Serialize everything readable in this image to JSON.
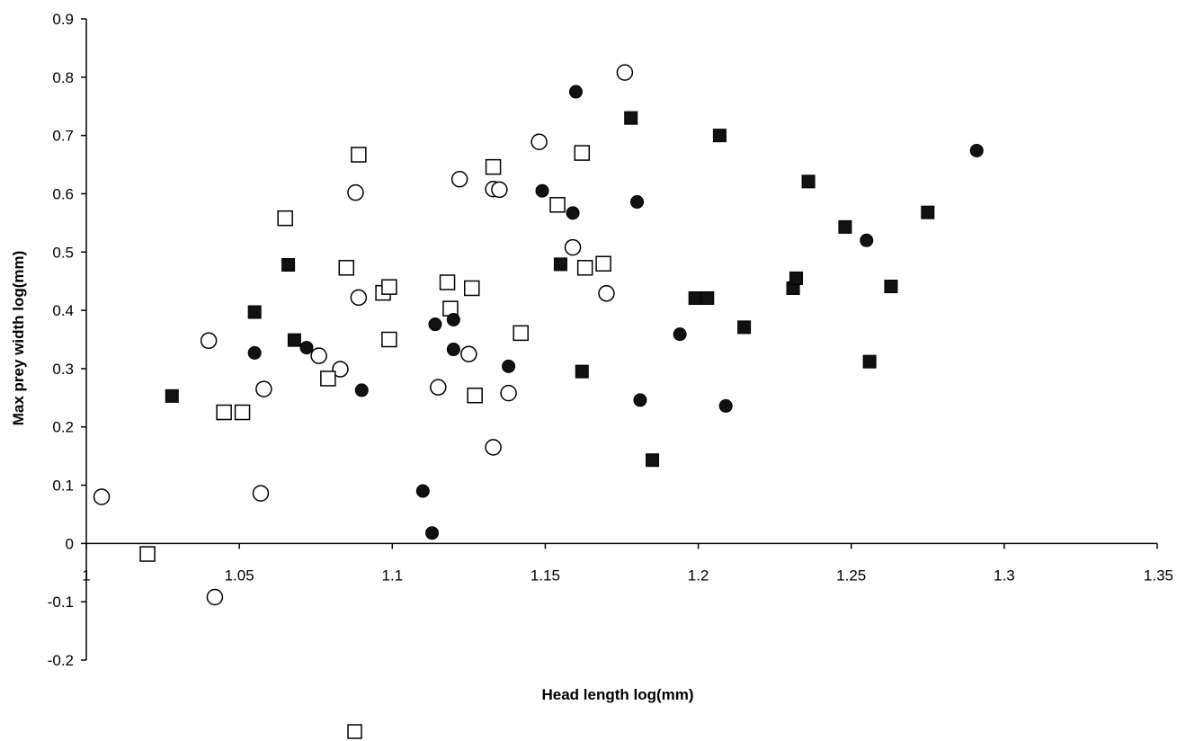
{
  "chart_data": {
    "type": "scatter",
    "title": "",
    "xlabel": "Head length log(mm)",
    "ylabel": "Max prey width log(mm)",
    "xlim": [
      1,
      1.35
    ],
    "ylim": [
      -0.2,
      0.9
    ],
    "x_ticks": [
      "1",
      "1.05",
      "1.1",
      "1.15",
      "1.2",
      "1.25",
      "1.3",
      "1.35"
    ],
    "y_ticks": [
      "-0.2",
      "-0.1",
      "0",
      "0.1",
      "0.2",
      "0.3",
      "0.4",
      "0.5",
      "0.6",
      "0.7",
      "0.8",
      "0.9"
    ],
    "grid": false,
    "legend": "none",
    "colors": {
      "axis": "#000000",
      "fill_dark": "#111111",
      "fill_open": "#ffffff"
    },
    "series": [
      {
        "marker": "open-circle",
        "points": [
          [
            1.005,
            0.08
          ],
          [
            1.04,
            0.348
          ],
          [
            1.042,
            -0.092
          ],
          [
            1.057,
            0.086
          ],
          [
            1.058,
            0.265
          ],
          [
            1.076,
            0.322
          ],
          [
            1.083,
            0.299
          ],
          [
            1.088,
            0.602
          ],
          [
            1.089,
            0.422
          ],
          [
            1.115,
            0.268
          ],
          [
            1.122,
            0.625
          ],
          [
            1.125,
            0.325
          ],
          [
            1.133,
            0.165
          ],
          [
            1.133,
            0.608
          ],
          [
            1.135,
            0.607
          ],
          [
            1.138,
            0.258
          ],
          [
            1.148,
            0.689
          ],
          [
            1.159,
            0.508
          ],
          [
            1.17,
            0.429
          ],
          [
            1.176,
            0.808
          ]
        ]
      },
      {
        "marker": "open-square",
        "points": [
          [
            1.02,
            -0.018
          ],
          [
            1.045,
            0.225
          ],
          [
            1.051,
            0.225
          ],
          [
            1.065,
            0.558
          ],
          [
            1.079,
            0.283
          ],
          [
            1.085,
            0.473
          ],
          [
            1.089,
            0.667
          ],
          [
            1.097,
            0.43
          ],
          [
            1.099,
            0.44
          ],
          [
            1.099,
            0.35
          ],
          [
            1.118,
            0.448
          ],
          [
            1.119,
            0.403
          ],
          [
            1.126,
            0.438
          ],
          [
            1.127,
            0.254
          ],
          [
            1.133,
            0.646
          ],
          [
            1.142,
            0.361
          ],
          [
            1.154,
            0.581
          ],
          [
            1.162,
            0.67
          ],
          [
            1.163,
            0.473
          ],
          [
            1.169,
            0.48
          ]
        ]
      },
      {
        "marker": "filled-circle",
        "points": [
          [
            1.055,
            0.327
          ],
          [
            1.072,
            0.336
          ],
          [
            1.09,
            0.263
          ],
          [
            1.11,
            0.09
          ],
          [
            1.113,
            0.018
          ],
          [
            1.114,
            0.376
          ],
          [
            1.12,
            0.384
          ],
          [
            1.12,
            0.333
          ],
          [
            1.138,
            0.304
          ],
          [
            1.149,
            0.605
          ],
          [
            1.159,
            0.567
          ],
          [
            1.16,
            0.775
          ],
          [
            1.18,
            0.586
          ],
          [
            1.181,
            0.246
          ],
          [
            1.194,
            0.359
          ],
          [
            1.209,
            0.236
          ],
          [
            1.255,
            0.52
          ],
          [
            1.291,
            0.674
          ]
        ]
      },
      {
        "marker": "filled-square",
        "points": [
          [
            1.028,
            0.253
          ],
          [
            1.055,
            0.397
          ],
          [
            1.066,
            0.478
          ],
          [
            1.068,
            0.349
          ],
          [
            1.155,
            0.479
          ],
          [
            1.162,
            0.295
          ],
          [
            1.178,
            0.73
          ],
          [
            1.185,
            0.143
          ],
          [
            1.199,
            0.421
          ],
          [
            1.203,
            0.421
          ],
          [
            1.207,
            0.7
          ],
          [
            1.215,
            0.371
          ],
          [
            1.231,
            0.438
          ],
          [
            1.232,
            0.455
          ],
          [
            1.236,
            0.621
          ],
          [
            1.248,
            0.543
          ],
          [
            1.256,
            0.312
          ],
          [
            1.263,
            0.441
          ],
          [
            1.275,
            0.568
          ]
        ]
      }
    ]
  },
  "legend_stray_marker": "open-square"
}
